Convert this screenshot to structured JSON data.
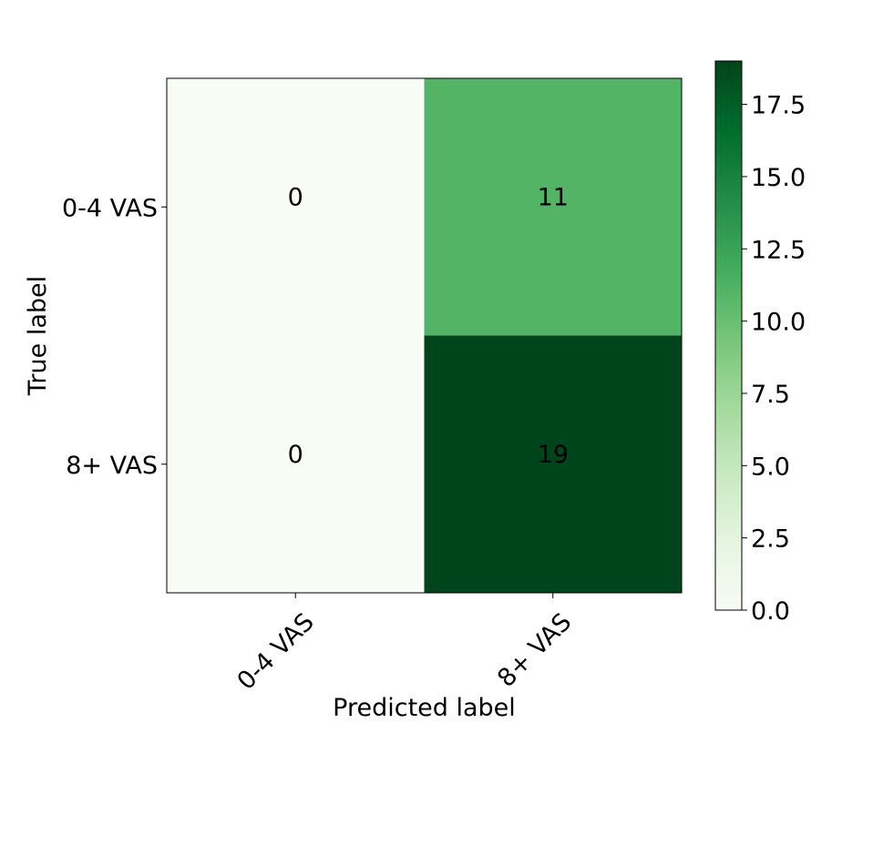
{
  "chart_data": {
    "type": "heatmap",
    "title": "",
    "xlabel": "Predicted label",
    "ylabel": "True label",
    "x_categories": [
      "0-4 VAS",
      "8+ VAS"
    ],
    "y_categories": [
      "0-4 VAS",
      "8+ VAS"
    ],
    "values": [
      [
        0,
        11
      ],
      [
        0,
        19
      ]
    ],
    "cell_text_colors": [
      [
        "#000000",
        "#808080"
      ],
      [
        "#000000",
        "#808080"
      ]
    ],
    "colormap": "Greens",
    "colorbar": {
      "range": [
        0,
        19
      ],
      "ticks": [
        0,
        2.5,
        5,
        7.5,
        10,
        12.5,
        15,
        17.5
      ],
      "tick_labels": [
        "0.0",
        "2.5",
        "5.0",
        "7.5",
        "10.0",
        "12.5",
        "15.0",
        "17.5"
      ]
    },
    "x_tick_rotation_deg": 45,
    "grid": false
  }
}
